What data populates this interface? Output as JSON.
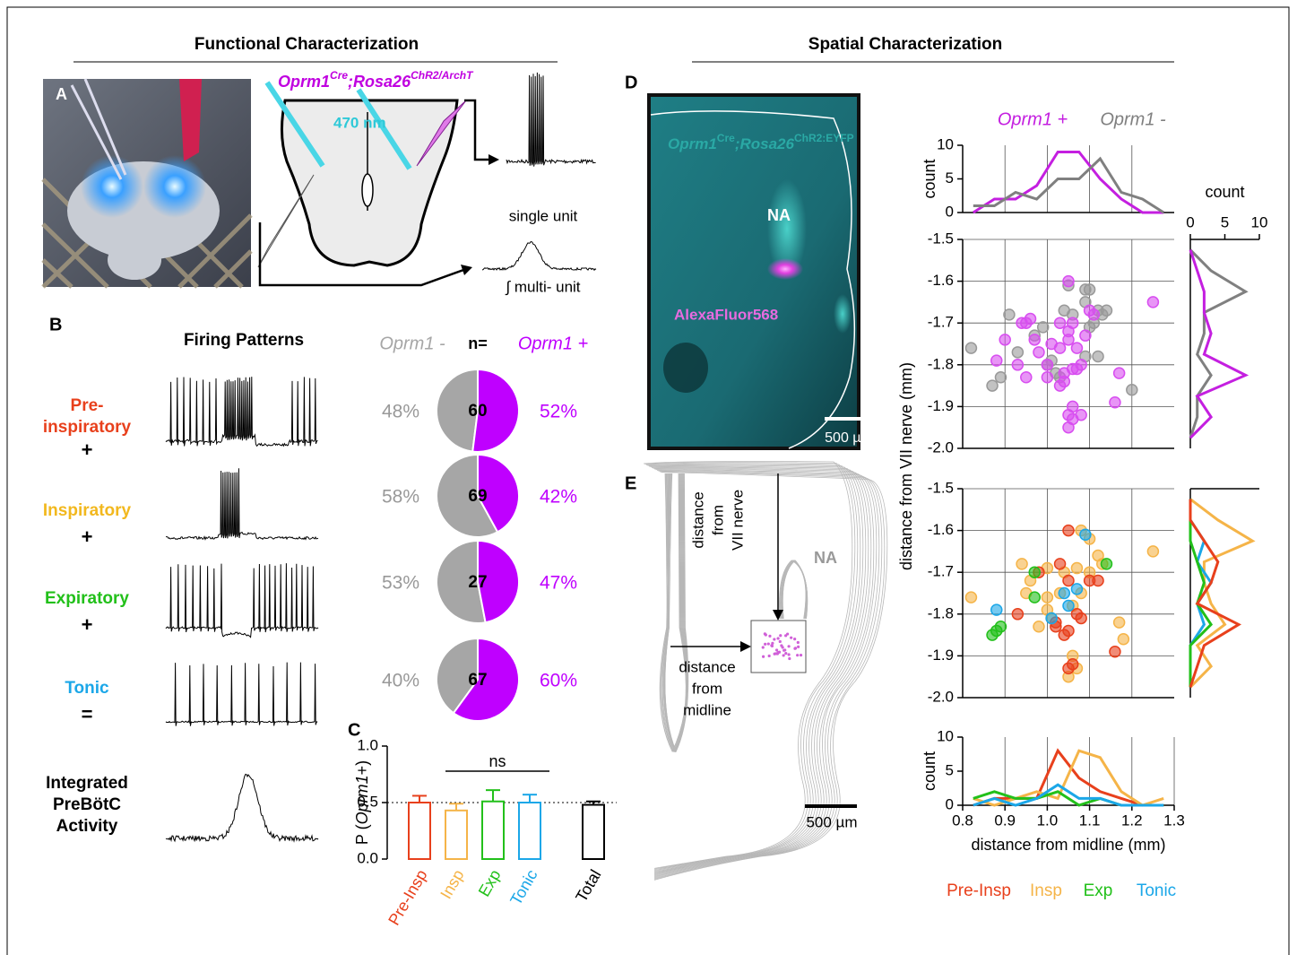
{
  "headings": {
    "functional": "Functional Characterization",
    "spatial": "Spatial Characterization"
  },
  "panel_letters": {
    "a": "A",
    "b": "B",
    "c": "C",
    "d": "D",
    "e": "E"
  },
  "panel_a": {
    "genotype": {
      "gene": "Oprm1",
      "gene_sup": "Cre",
      "reporter": ";Rosa26",
      "reporter_sup": "ChR2/ArchT"
    },
    "light": "470 nm",
    "single_unit": "single unit",
    "multi_unit": "∫ multi- unit"
  },
  "panel_b": {
    "title": "Firing Patterns",
    "rows": [
      {
        "label": [
          "Pre-",
          "inspiratory"
        ],
        "operator": "+",
        "color": "#e8401c"
      },
      {
        "label": [
          "Inspiratory"
        ],
        "operator": "+",
        "color": "#f2b81e"
      },
      {
        "label": [
          "Expiratory"
        ],
        "operator": "+",
        "color": "#22c01a"
      },
      {
        "label": [
          "Tonic"
        ],
        "operator": "=",
        "color": "#1ba7e8"
      },
      {
        "label": [
          "Integrated",
          "PreBötC",
          "Activity"
        ],
        "color": "#000000"
      }
    ]
  },
  "panel_d": {
    "genotype": {
      "gene": "Oprm1",
      "gene_sup": "Cre",
      "reporter": ";Rosa26",
      "reporter_sup": "ChR2:EYFP"
    },
    "nucleus": "NA",
    "dye": "AlexaFluor568",
    "scale": "500 µm"
  },
  "panel_e": {
    "vertical": [
      "distance",
      "from",
      "VII nerve"
    ],
    "nucleus": "NA",
    "horizontal": [
      "distance",
      "from",
      "midline"
    ],
    "scale": "500 µm"
  },
  "chart_data": [
    {
      "type": "pie",
      "series_names": [
        "Oprm1 -",
        "Oprm1 +"
      ],
      "colors": [
        "#a6a6a6",
        "#bf00ff"
      ],
      "n_label": "n=",
      "rows": [
        {
          "n": 60,
          "values": [
            48,
            52
          ],
          "value_labels": [
            "48%",
            "52%"
          ]
        },
        {
          "n": 69,
          "values": [
            58,
            42
          ],
          "value_labels": [
            "58%",
            "42%"
          ]
        },
        {
          "n": 27,
          "values": [
            53,
            47
          ],
          "value_labels": [
            "53%",
            "47%"
          ]
        },
        {
          "n": 67,
          "values": [
            40,
            60
          ],
          "value_labels": [
            "40%",
            "60%"
          ]
        }
      ]
    },
    {
      "type": "bar",
      "categories": [
        "Pre-Insp",
        "Insp",
        "Exp",
        "Tonic",
        "Total"
      ],
      "colors": [
        "#e8401c",
        "#f5b448",
        "#22c01a",
        "#1ba7e8",
        "#000000"
      ],
      "values": [
        0.5,
        0.43,
        0.51,
        0.5,
        0.48
      ],
      "errors": [
        0.06,
        0.06,
        0.1,
        0.07,
        0.03
      ],
      "ylim": [
        0,
        1
      ],
      "yticks": [
        {
          "value": 0,
          "label": "0.0"
        },
        0.5,
        {
          "value": 1,
          "label": "1.0"
        }
      ],
      "ylabel": {
        "pre": "P (",
        "gene": "Oprm1",
        "post": "+)"
      },
      "reference_line": 0.5,
      "annotation": "ns"
    },
    {
      "type": "line",
      "legend": "top",
      "x": [
        0.825,
        0.875,
        0.925,
        0.975,
        1.025,
        1.075,
        1.125,
        1.175,
        1.225,
        1.275
      ],
      "xlim": [
        0.8,
        1.3
      ],
      "xticks": [
        0.9,
        1,
        1.1,
        1.2
      ],
      "ylim": [
        0,
        10
      ],
      "yticks": [
        0,
        5,
        10
      ],
      "ylabel": "count",
      "series": [
        {
          "name": "Oprm1 +",
          "color": "#c41fe0",
          "values": [
            0,
            2,
            2,
            4,
            9,
            9,
            5,
            2,
            0,
            0
          ]
        },
        {
          "name": "Oprm1 -",
          "color": "#808080",
          "values": [
            1,
            1,
            3,
            2,
            5,
            5,
            8,
            3,
            2,
            0
          ]
        }
      ]
    },
    {
      "type": "scatter",
      "xlim": [
        0.8,
        1.3
      ],
      "xticks": [
        0.9,
        1,
        1.1,
        1.2
      ],
      "ylim": [
        -2,
        -1.5
      ],
      "yticks": [
        -1.5,
        -1.6,
        -1.7,
        -1.8,
        -1.9,
        {
          "value": -2,
          "label": "-2.0"
        }
      ],
      "grid": true,
      "ylabel": "distance from VII nerve (mm)",
      "series": [
        {
          "color": "#999999",
          "x": [
            0.82,
            0.87,
            0.89,
            0.91,
            0.93,
            0.97,
            0.99,
            1.0,
            1.01,
            1.02,
            1.04,
            1.05,
            1.06,
            1.09,
            1.09,
            1.1,
            1.11,
            1.12,
            1.13,
            1.14,
            1.1,
            1.12,
            1.09,
            1.2,
            1.03
          ],
          "values": [
            -1.76,
            -1.85,
            -1.83,
            -1.68,
            -1.77,
            -1.73,
            -1.71,
            -1.8,
            -1.79,
            -1.82,
            -1.67,
            -1.61,
            -1.68,
            -1.62,
            -1.65,
            -1.62,
            -1.7,
            -1.67,
            -1.68,
            -1.67,
            -1.71,
            -1.78,
            -1.78,
            -1.86,
            -1.83
          ]
        },
        {
          "color": "#d84ef0",
          "x": [
            1.05,
            1.25,
            0.94,
            0.95,
            0.96,
            1.03,
            1.06,
            1.1,
            1.11,
            1.05,
            1.03,
            1.05,
            1.09,
            0.9,
            0.97,
            1.01,
            0.98,
            1.07,
            0.93,
            0.88,
            1.0,
            1.08,
            1.07,
            1.17,
            1.04,
            1.06,
            1.0,
            0.95,
            1.03,
            1.04,
            1.06,
            1.05,
            1.06,
            1.08,
            1.05,
            1.16
          ],
          "values": [
            -1.6,
            -1.65,
            -1.7,
            -1.7,
            -1.69,
            -1.7,
            -1.7,
            -1.67,
            -1.68,
            -1.72,
            -1.76,
            -1.74,
            -1.73,
            -1.74,
            -1.74,
            -1.75,
            -1.77,
            -1.76,
            -1.8,
            -1.79,
            -1.8,
            -1.8,
            -1.81,
            -1.82,
            -1.82,
            -1.81,
            -1.83,
            -1.83,
            -1.85,
            -1.84,
            -1.9,
            -1.92,
            -1.93,
            -1.92,
            -1.95,
            -1.89
          ]
        }
      ]
    },
    {
      "type": "line",
      "orientation": "horizontal",
      "y": [
        -1.975,
        -1.925,
        -1.875,
        -1.825,
        -1.775,
        -1.725,
        -1.675,
        -1.625,
        -1.575,
        -1.525
      ],
      "ylim": [
        -2,
        -1.5
      ],
      "xlim": [
        0,
        10
      ],
      "xticks": [
        0,
        5,
        10
      ],
      "xlabel": "count",
      "series": [
        {
          "color": "#808080",
          "values": [
            0,
            1,
            1,
            3,
            1,
            2,
            2,
            8,
            3,
            0
          ]
        },
        {
          "color": "#c41fe0",
          "values": [
            0,
            3,
            1,
            8,
            2,
            3,
            2,
            2,
            1,
            0
          ]
        }
      ]
    },
    {
      "type": "scatter",
      "xlim": [
        0.8,
        1.3
      ],
      "xticks": [
        0.9,
        1,
        1.1,
        1.2
      ],
      "ylim": [
        -2,
        -1.5
      ],
      "yticks": [
        -1.5,
        -1.6,
        -1.7,
        -1.8,
        -1.9,
        {
          "value": -2,
          "label": "-2.0"
        }
      ],
      "grid": true,
      "series": [
        {
          "color": "#f5b448",
          "x": [
            1.25,
            1.08,
            1.1,
            1.12,
            1.13,
            1.1,
            0.94,
            1.0,
            1.04,
            1.07,
            0.96,
            0.82,
            0.95,
            1.0,
            1.03,
            1.08,
            1.0,
            1.06,
            0.98,
            1.01,
            1.17,
            1.18,
            1.06,
            1.07,
            1.05
          ],
          "values": [
            -1.65,
            -1.6,
            -1.62,
            -1.66,
            -1.68,
            -1.7,
            -1.68,
            -1.69,
            -1.7,
            -1.69,
            -1.72,
            -1.76,
            -1.75,
            -1.76,
            -1.75,
            -1.75,
            -1.79,
            -1.78,
            -1.83,
            -1.81,
            -1.82,
            -1.86,
            -1.9,
            -1.93,
            -1.95
          ]
        },
        {
          "color": "#e8401c",
          "x": [
            1.05,
            1.03,
            0.98,
            1.1,
            1.12,
            1.05,
            0.93,
            1.07,
            1.08,
            1.02,
            1.02,
            1.04,
            1.05,
            1.06,
            1.05,
            1.16
          ],
          "values": [
            -1.6,
            -1.68,
            -1.7,
            -1.72,
            -1.72,
            -1.72,
            -1.8,
            -1.8,
            -1.81,
            -1.82,
            -1.83,
            -1.85,
            -1.84,
            -1.92,
            -1.93,
            -1.89
          ]
        },
        {
          "color": "#22c01a",
          "x": [
            0.97,
            0.97,
            0.87,
            0.88,
            0.89,
            1.14
          ],
          "values": [
            -1.7,
            -1.76,
            -1.85,
            -1.84,
            -1.83,
            -1.68
          ]
        },
        {
          "color": "#1ba7e8",
          "x": [
            1.09,
            0.88,
            1.04,
            1.07,
            1.01,
            1.05
          ],
          "values": [
            -1.61,
            -1.79,
            -1.75,
            -1.74,
            -1.81,
            -1.78
          ]
        }
      ]
    },
    {
      "type": "line",
      "orientation": "horizontal",
      "y": [
        -1.975,
        -1.925,
        -1.875,
        -1.825,
        -1.775,
        -1.725,
        -1.675,
        -1.625,
        -1.575,
        -1.525
      ],
      "ylim": [
        -2,
        -1.5
      ],
      "xlim": [
        0,
        10
      ],
      "series": [
        {
          "color": "#f5b448",
          "values": [
            0,
            3,
            1,
            5,
            3,
            2,
            2,
            9,
            4,
            0
          ]
        },
        {
          "color": "#1ba7e8",
          "values": [
            0,
            0,
            0,
            2,
            1,
            3,
            1,
            2,
            0,
            0
          ]
        },
        {
          "color": "#22c01a",
          "values": [
            0,
            0,
            0,
            3,
            1,
            2,
            1,
            0,
            0,
            0
          ]
        },
        {
          "color": "#e8401c",
          "values": [
            0,
            1,
            2,
            7,
            1,
            3,
            4,
            2,
            0,
            0
          ]
        }
      ]
    },
    {
      "type": "line",
      "legend": "bottom",
      "x": [
        0.825,
        0.875,
        0.925,
        0.975,
        1.025,
        1.075,
        1.125,
        1.175,
        1.225,
        1.275
      ],
      "xlim": [
        0.8,
        1.3
      ],
      "xticks": [
        0.8,
        0.9,
        {
          "value": 1,
          "label": "1.0"
        },
        1.1,
        1.2,
        1.3
      ],
      "ylim": [
        0,
        10
      ],
      "yticks": [
        0,
        5,
        10
      ],
      "ylabel": "count",
      "xlabel": "distance from midline (mm)",
      "series": [
        {
          "name": "Pre-Insp",
          "color": "#e8401c",
          "values": [
            0,
            1,
            1,
            1,
            8,
            4,
            2,
            1,
            0,
            0
          ]
        },
        {
          "name": "Insp",
          "color": "#f5b448",
          "values": [
            1,
            0,
            1,
            2,
            1,
            8,
            7,
            2,
            0,
            1
          ]
        },
        {
          "name": "Exp",
          "color": "#22c01a",
          "values": [
            1,
            2,
            1,
            1,
            2,
            0,
            1,
            0,
            0,
            0
          ]
        },
        {
          "name": "Tonic",
          "color": "#1ba7e8",
          "values": [
            0,
            1,
            0,
            1,
            3,
            1,
            1,
            0,
            0,
            0
          ]
        }
      ]
    }
  ]
}
